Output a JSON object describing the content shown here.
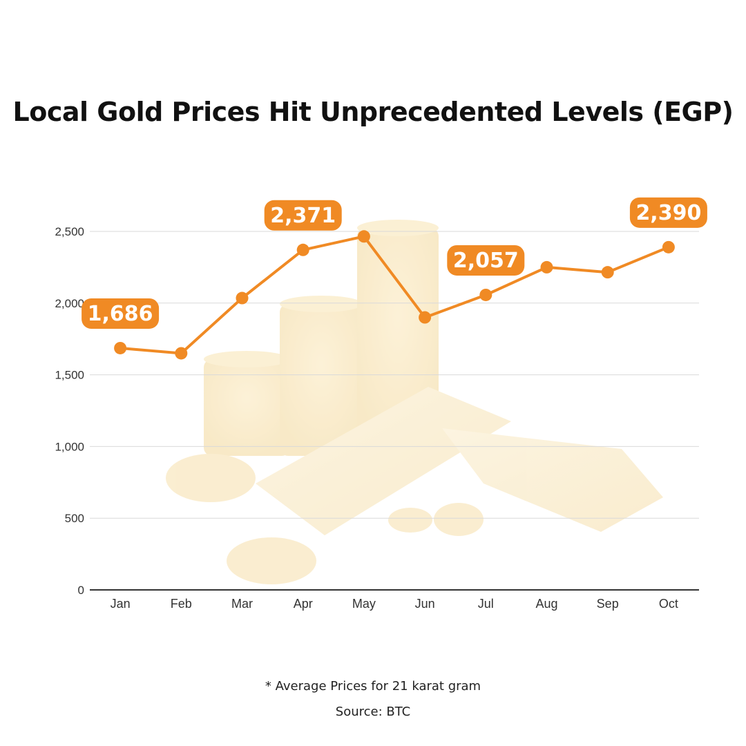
{
  "colors": {
    "accent": "#f08a24",
    "gridline": "#d9d9d9",
    "axis": "#333333"
  },
  "footnote": "* Average Prices for 21 karat gram",
  "source": "Source: BTC",
  "chart_data": {
    "type": "line",
    "title": "Local Gold Prices Hit Unprecedented Levels (EGP)",
    "categories": [
      "Jan",
      "Feb",
      "Mar",
      "Apr",
      "May",
      "Jun",
      "Jul",
      "Aug",
      "Sep",
      "Oct"
    ],
    "series": [
      {
        "values": [
          1686,
          1650,
          2035,
          2371,
          2465,
          1900,
          2057,
          2250,
          2215,
          2390
        ]
      }
    ],
    "data_labels": [
      {
        "index": 0,
        "text": "1,686"
      },
      {
        "index": 3,
        "text": "2,371"
      },
      {
        "index": 6,
        "text": "2,057"
      },
      {
        "index": 9,
        "text": "2,390"
      }
    ],
    "yticks": [
      0,
      500,
      1000,
      1500,
      2000,
      2500
    ],
    "ytick_labels": [
      "0",
      "500",
      "1,000",
      "1,500",
      "2,000",
      "2,500"
    ],
    "ylim": [
      0,
      2500
    ],
    "grid": true,
    "legend": "none"
  }
}
